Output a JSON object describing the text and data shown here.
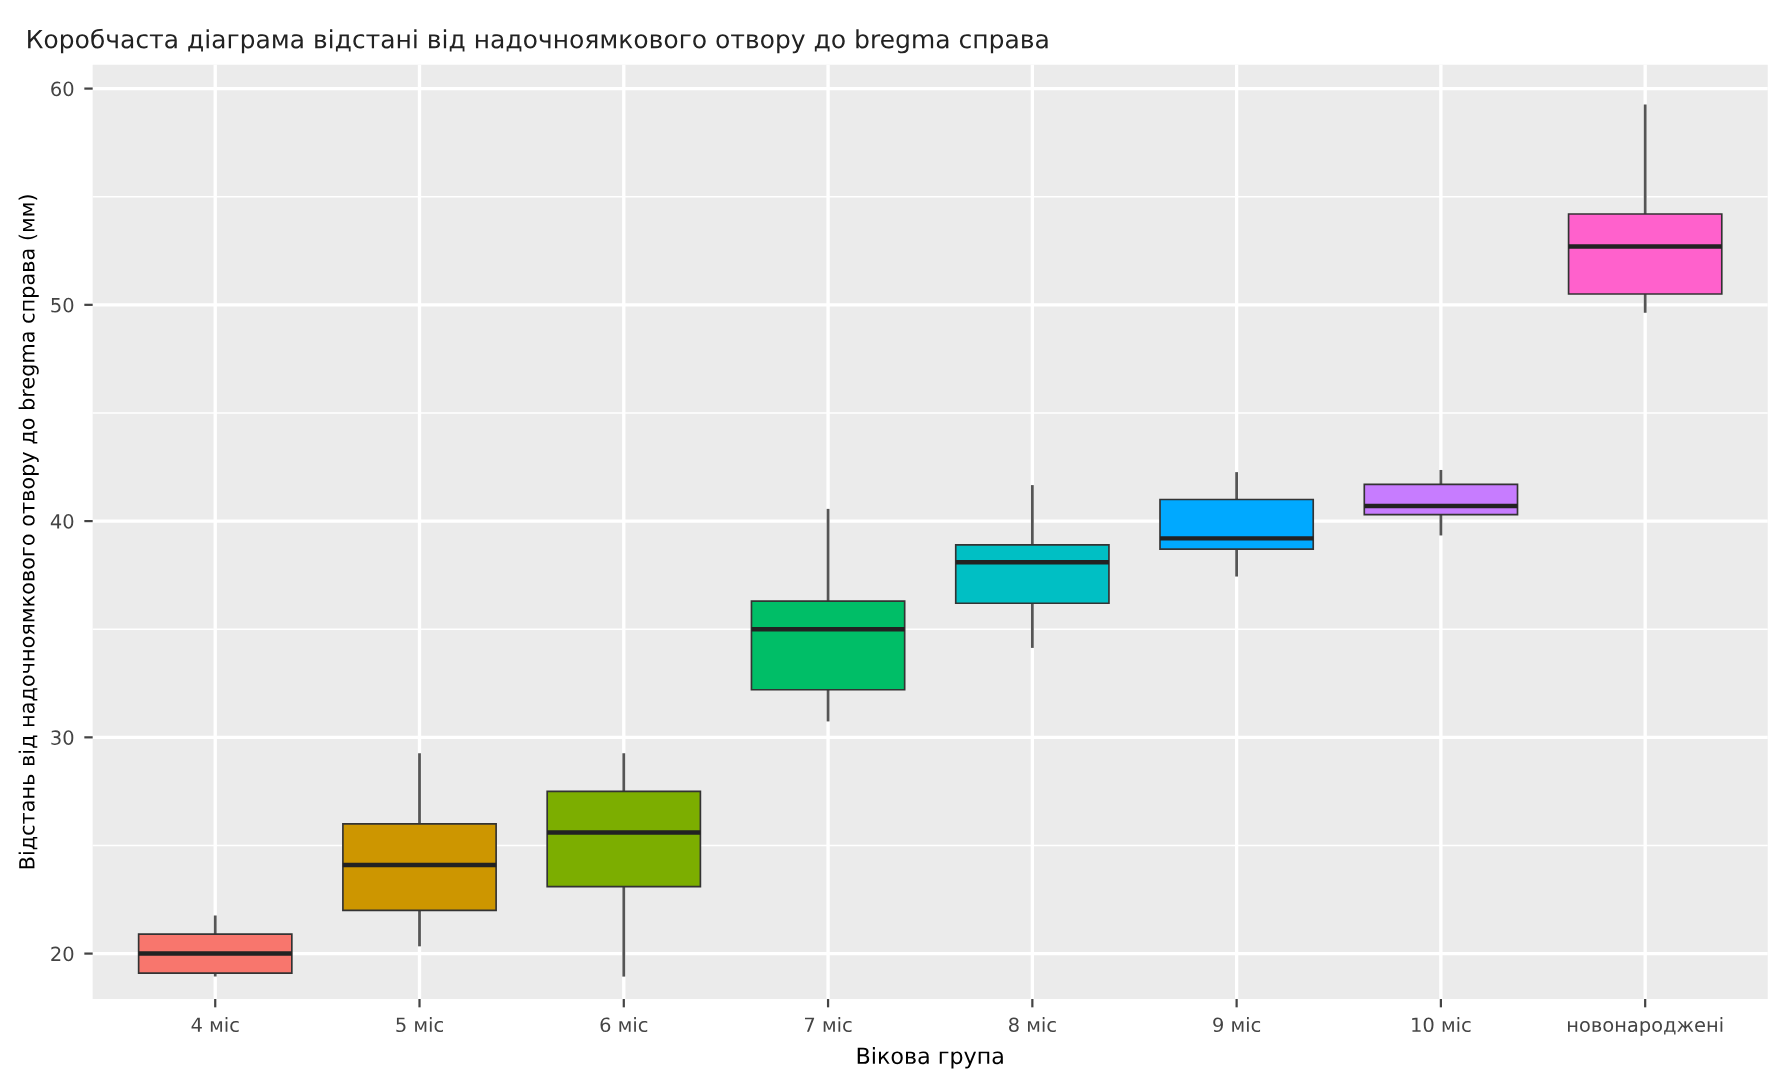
{
  "chart_data": {
    "type": "box",
    "title": "Коробчаста діаграма відстані від надочноямкового отвору до bregma справа",
    "xlabel": "Вікова група",
    "ylabel": "Відстань від надочноямкового отвору до bregma справа (мм)",
    "categories": [
      "4 міс",
      "5 міс",
      "6 міс",
      "7 міс",
      "8 міс",
      "9 міс",
      "10 міс",
      "новонароджені"
    ],
    "colors": [
      "#f8766d",
      "#cd9600",
      "#7cae00",
      "#00be67",
      "#00bfc4",
      "#00a9ff",
      "#c77cff",
      "#ff61cc"
    ],
    "boxes": [
      {
        "low": 19.0,
        "q1": 19.1,
        "median": 20.0,
        "q3": 20.9,
        "high": 21.7
      },
      {
        "low": 20.4,
        "q1": 22.0,
        "median": 24.1,
        "q3": 26.0,
        "high": 29.2
      },
      {
        "low": 19.0,
        "q1": 23.1,
        "median": 25.6,
        "q3": 27.5,
        "high": 29.2
      },
      {
        "low": 30.8,
        "q1": 32.2,
        "median": 35.0,
        "q3": 36.3,
        "high": 40.5
      },
      {
        "low": 34.2,
        "q1": 36.2,
        "median": 38.1,
        "q3": 38.9,
        "high": 41.6
      },
      {
        "low": 37.5,
        "q1": 38.7,
        "median": 39.2,
        "q3": 41.0,
        "high": 42.2
      },
      {
        "low": 39.4,
        "q1": 40.3,
        "median": 40.7,
        "q3": 41.7,
        "high": 42.3
      },
      {
        "low": 49.7,
        "q1": 50.5,
        "median": 52.7,
        "q3": 54.2,
        "high": 59.2
      }
    ],
    "ylim": [
      17.9,
      61.1
    ],
    "yticks": [
      20,
      30,
      40,
      50,
      60
    ],
    "grid": true
  }
}
